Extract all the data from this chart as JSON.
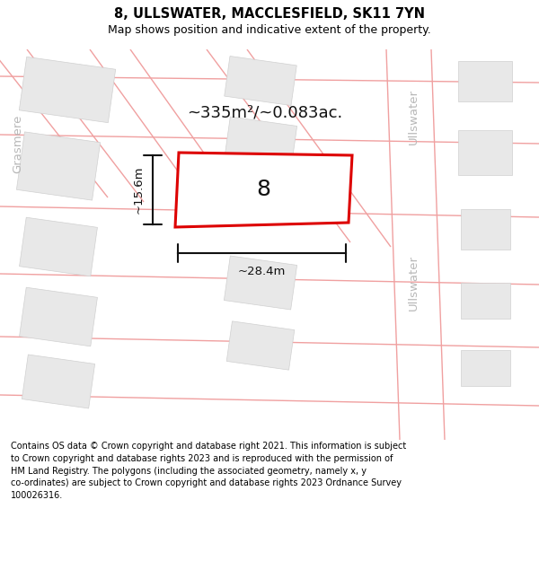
{
  "title": "8, ULLSWATER, MACCLESFIELD, SK11 7YN",
  "subtitle": "Map shows position and indicative extent of the property.",
  "area_text": "~335m²/~0.083ac.",
  "dim_width": "~28.4m",
  "dim_height": "~15.6m",
  "property_number": "8",
  "street_left": "Grasmere",
  "street_right1": "Ullswater",
  "street_right2": "Ullswater",
  "footer_lines": [
    "Contains OS data © Crown copyright and database right 2021. This information is subject",
    "to Crown copyright and database rights 2023 and is reproduced with the permission of",
    "HM Land Registry. The polygons (including the associated geometry, namely x, y",
    "co-ordinates) are subject to Crown copyright and database rights 2023 Ordnance Survey",
    "100026316."
  ],
  "bg_color": "#ffffff",
  "map_bg": "#ffffff",
  "building_color": "#e8e8e8",
  "building_edge": "#d0d0d0",
  "road_line_color": "#f0a0a0",
  "property_edge_color": "#dd0000",
  "property_fill": "#ffffff",
  "dim_color": "#111111",
  "text_color": "#111111",
  "street_color": "#b8b8b8",
  "title_fontsize": 10.5,
  "subtitle_fontsize": 9.0,
  "footer_fontsize": 7.0
}
